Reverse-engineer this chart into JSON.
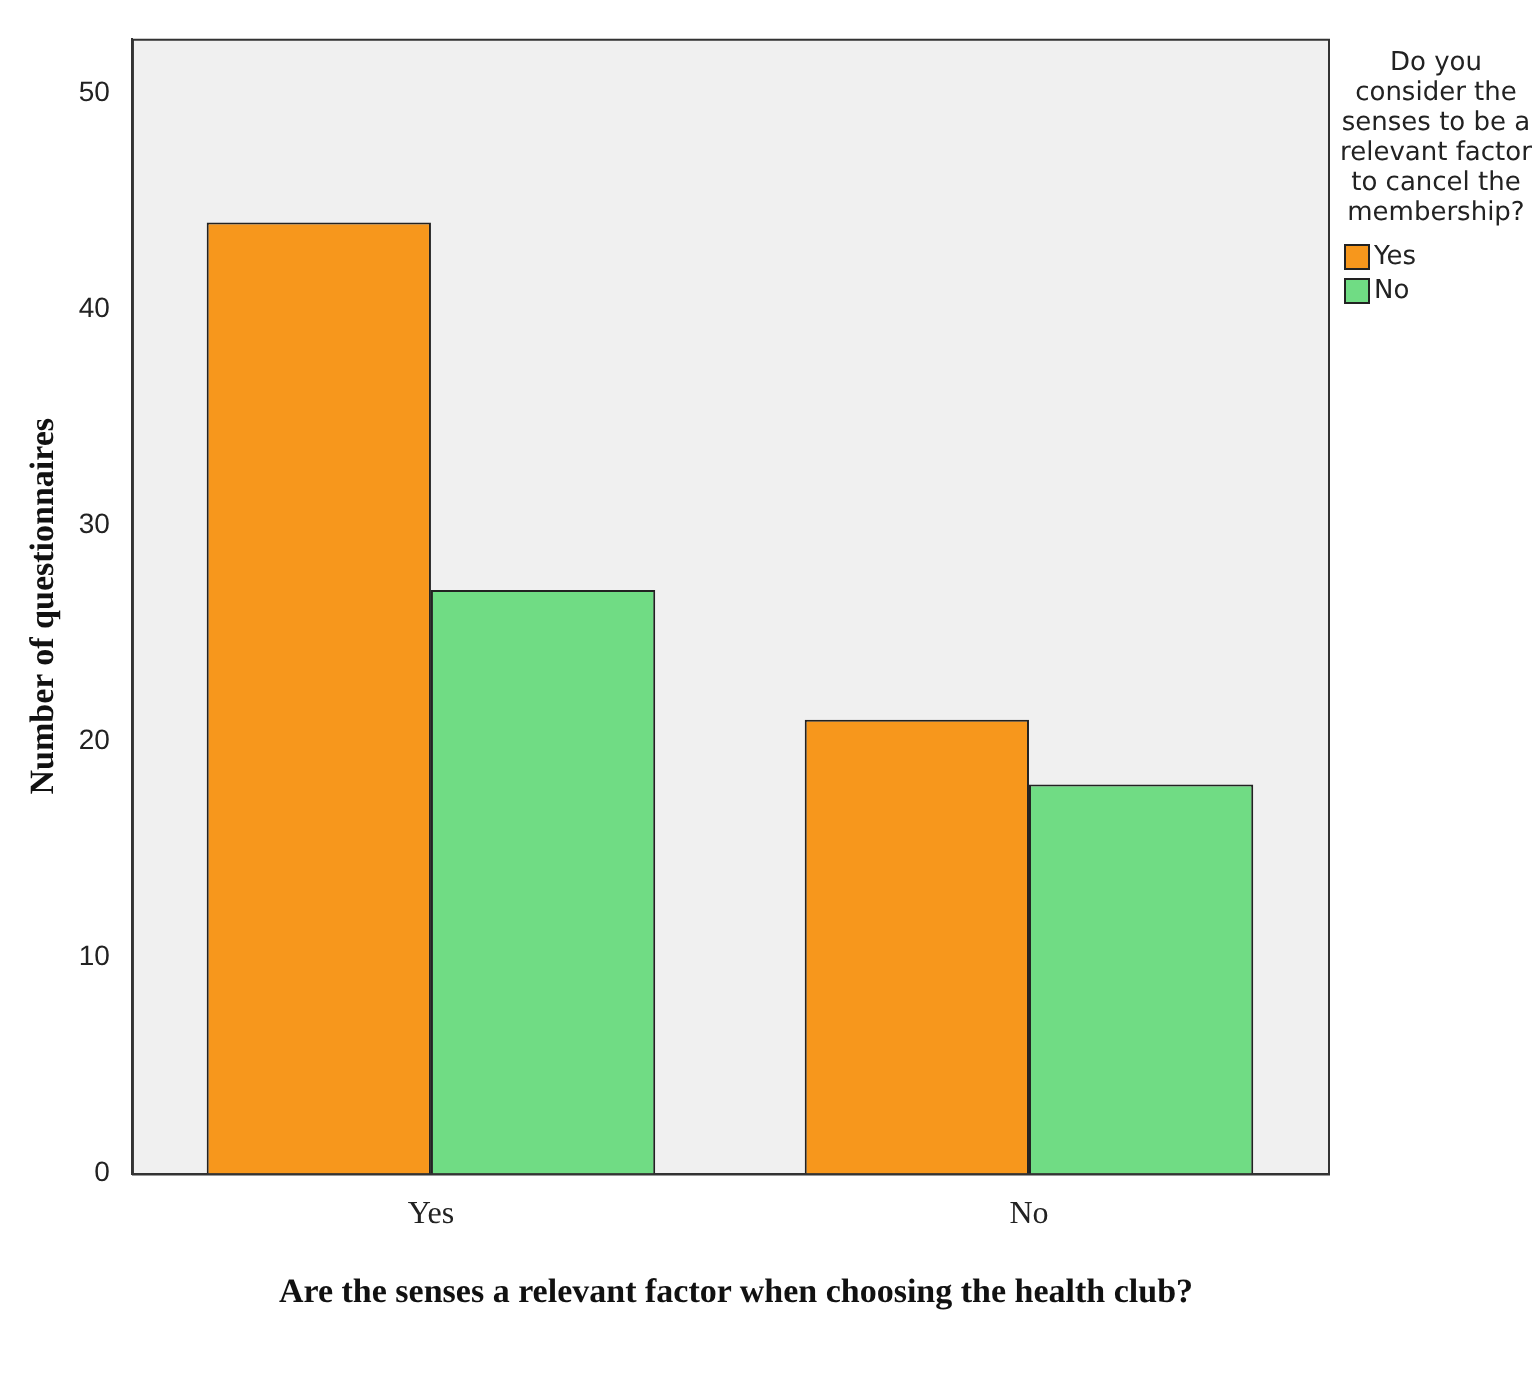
{
  "chart_data": {
    "type": "bar",
    "xlabel": "Are the senses a relevant factor when choosing the health club?",
    "ylabel": "Number of questionnaires",
    "legend_title": "Do you consider the senses to be a relevant factor to cancel the membership?",
    "categories": [
      "Yes",
      "No"
    ],
    "series": [
      {
        "name": "Yes",
        "color": "#f7971c",
        "values": [
          44,
          21
        ]
      },
      {
        "name": "No",
        "color": "#70dc84",
        "values": [
          27,
          18
        ]
      }
    ],
    "ylim": [
      0,
      52.5
    ],
    "yticks": [
      0,
      10,
      20,
      30,
      40,
      50
    ],
    "grid": false,
    "legend": "right"
  }
}
